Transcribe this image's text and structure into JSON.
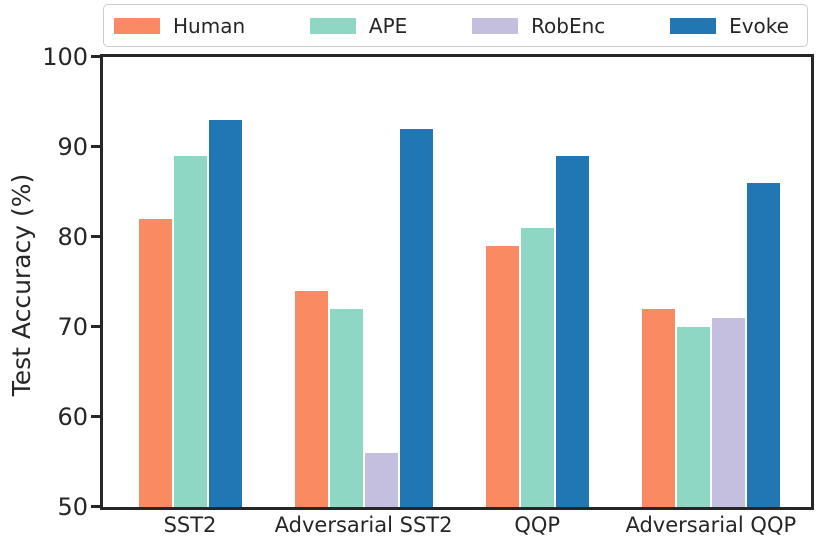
{
  "figure": {
    "background": "#ffffff",
    "text_color": "#262626",
    "axis_color": "#262626",
    "legend_border_color": "#cccccc"
  },
  "chart_data": {
    "type": "bar",
    "title": "",
    "xlabel": "",
    "ylabel": "Test Accuracy (%)",
    "ylim": [
      50,
      100
    ],
    "yticks": [
      50,
      60,
      70,
      80,
      90,
      100
    ],
    "grid": false,
    "legend_position": "top-outside",
    "categories": [
      "SST2",
      "Adversarial SST2",
      "QQP",
      "Adversarial QQP"
    ],
    "series": [
      {
        "name": "Human",
        "color": "#FA8A61",
        "values": [
          82,
          74,
          79,
          72
        ]
      },
      {
        "name": "APE",
        "color": "#8ED7C5",
        "values": [
          89,
          72,
          81,
          70
        ]
      },
      {
        "name": "RobEnc",
        "color": "#C5BFDF",
        "values": [
          null,
          56,
          null,
          71
        ]
      },
      {
        "name": "Evoke",
        "color": "#2176B4",
        "values": [
          93,
          92,
          89,
          86
        ]
      }
    ]
  }
}
